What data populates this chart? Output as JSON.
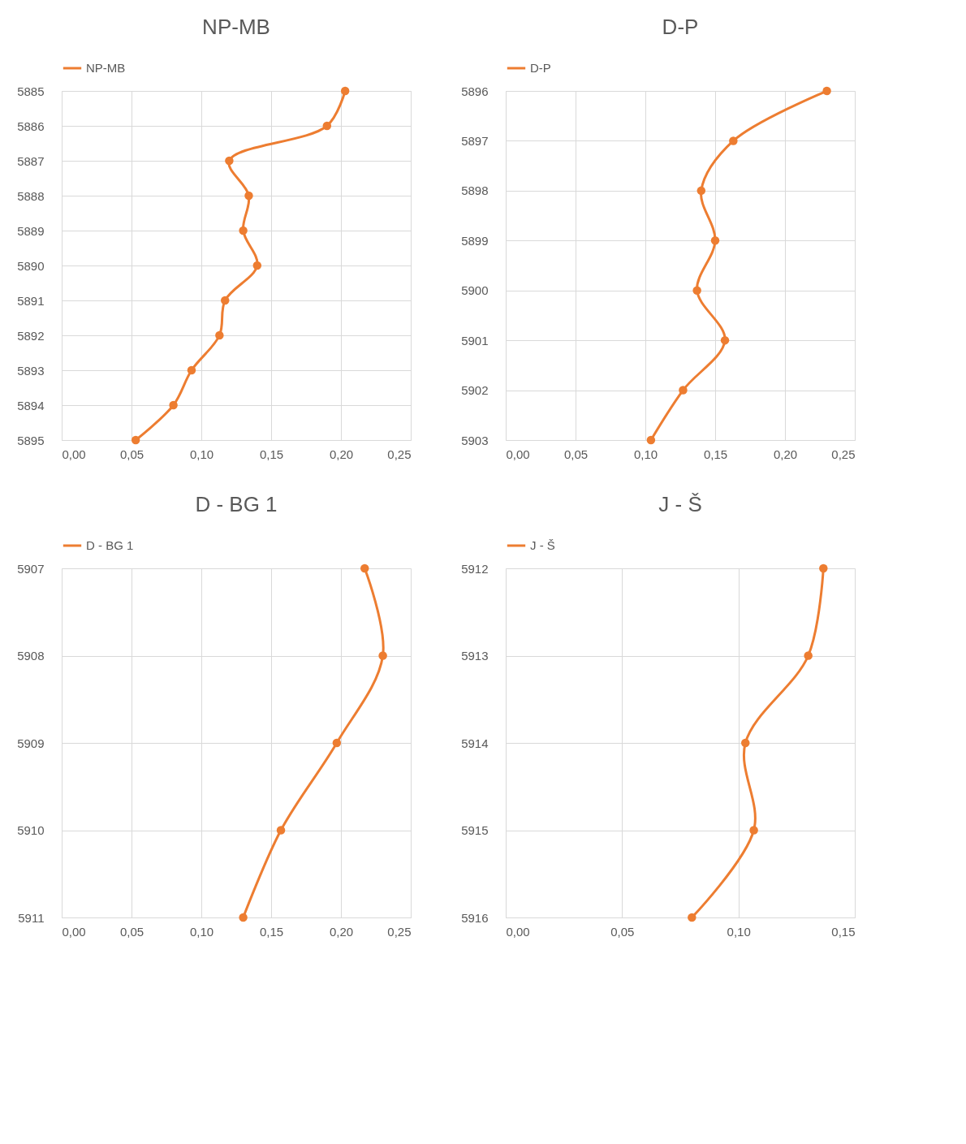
{
  "chart_data": [
    {
      "type": "line",
      "title": "NP-MB",
      "series": [
        {
          "name": "NP-MB",
          "color": "#ed7d31",
          "x": [
            0.203,
            0.19,
            0.12,
            0.134,
            0.13,
            0.14,
            0.117,
            0.113,
            0.093,
            0.08,
            0.053
          ],
          "values": [
            5885,
            5886,
            5887,
            5888,
            5889,
            5890,
            5891,
            5892,
            5893,
            5894,
            5895
          ]
        }
      ],
      "xlim": [
        0,
        0.25
      ],
      "xticks": [
        {
          "value": 0,
          "label": "0,00"
        },
        {
          "value": 0.05,
          "label": "0,05"
        },
        {
          "value": 0.1,
          "label": "0,10"
        },
        {
          "value": 0.15,
          "label": "0,15"
        },
        {
          "value": 0.2,
          "label": "0,20"
        },
        {
          "value": 0.25,
          "label": "0,25"
        }
      ],
      "ylim": [
        5895,
        5885
      ],
      "yticks": [
        5885,
        5886,
        5887,
        5888,
        5889,
        5890,
        5891,
        5892,
        5893,
        5894,
        5895
      ],
      "grid": true,
      "legend": "top",
      "marker": "circle",
      "line_style": "solid"
    },
    {
      "type": "line",
      "title": "D-P",
      "series": [
        {
          "name": "D-P",
          "color": "#ed7d31",
          "x": [
            0.23,
            0.163,
            0.14,
            0.15,
            0.137,
            0.157,
            0.127,
            0.104
          ],
          "values": [
            5896,
            5897,
            5898,
            5899,
            5900,
            5901,
            5902,
            5903
          ]
        }
      ],
      "xlim": [
        0,
        0.25
      ],
      "xticks": [
        {
          "value": 0,
          "label": "0,00"
        },
        {
          "value": 0.05,
          "label": "0,05"
        },
        {
          "value": 0.1,
          "label": "0,10"
        },
        {
          "value": 0.15,
          "label": "0,15"
        },
        {
          "value": 0.2,
          "label": "0,20"
        },
        {
          "value": 0.25,
          "label": "0,25"
        }
      ],
      "ylim": [
        5903,
        5896
      ],
      "yticks": [
        5896,
        5897,
        5898,
        5899,
        5900,
        5901,
        5902,
        5903
      ],
      "grid": true,
      "legend": "top",
      "marker": "circle",
      "line_style": "solid"
    },
    {
      "type": "line",
      "title": "D - BG 1",
      "series": [
        {
          "name": "D - BG 1",
          "color": "#ed7d31",
          "x": [
            0.217,
            0.23,
            0.197,
            0.157,
            0.13
          ],
          "values": [
            5907,
            5908,
            5909,
            5910,
            5911
          ]
        }
      ],
      "xlim": [
        0,
        0.25
      ],
      "xticks": [
        {
          "value": 0,
          "label": "0,00"
        },
        {
          "value": 0.05,
          "label": "0,05"
        },
        {
          "value": 0.1,
          "label": "0,10"
        },
        {
          "value": 0.15,
          "label": "0,15"
        },
        {
          "value": 0.2,
          "label": "0,20"
        },
        {
          "value": 0.25,
          "label": "0,25"
        }
      ],
      "ylim": [
        5911,
        5907
      ],
      "yticks": [
        5907,
        5908,
        5909,
        5910,
        5911
      ],
      "grid": true,
      "legend": "top",
      "marker": "circle",
      "line_style": "solid"
    },
    {
      "type": "line",
      "title": "J - Š",
      "series": [
        {
          "name": "J - Š",
          "color": "#ed7d31",
          "x": [
            0.1365,
            0.13,
            0.103,
            0.1066,
            0.08
          ],
          "values": [
            5912,
            5913,
            5914,
            5915,
            5916
          ]
        }
      ],
      "xlim": [
        0,
        0.15
      ],
      "xticks": [
        {
          "value": 0,
          "label": "0,00"
        },
        {
          "value": 0.05,
          "label": "0,05"
        },
        {
          "value": 0.1,
          "label": "0,10"
        },
        {
          "value": 0.15,
          "label": "0,15"
        }
      ],
      "ylim": [
        5916,
        5912
      ],
      "yticks": [
        5912,
        5913,
        5914,
        5915,
        5916
      ],
      "grid": true,
      "legend": "top",
      "marker": "circle",
      "line_style": "solid"
    }
  ]
}
